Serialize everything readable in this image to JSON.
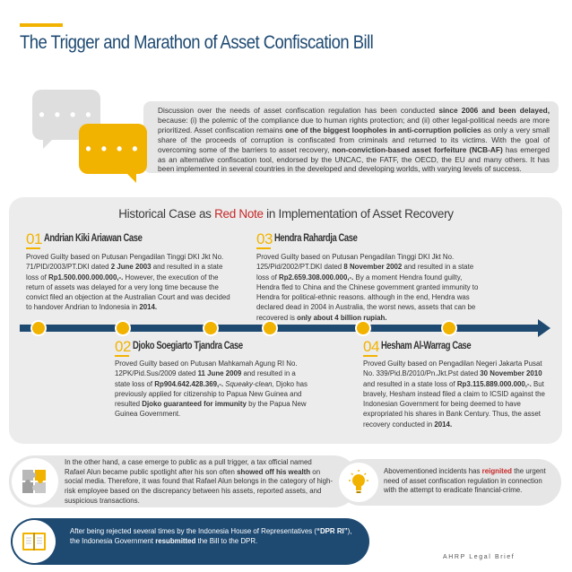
{
  "title": "The Trigger and Marathon of Asset Confiscation Bill",
  "intro": {
    "dots": "• • • •",
    "text": "Discussion over the needs of asset confiscation regulation has been conducted since 2006 and been delayed, because: (i) the polemic of the compliance due to human rights protection; and (ii) other legal-political needs are more prioritized. Asset confiscation remains one of the biggest loopholes in anti-corruption policies as only a very small share of the proceeds of corruption is confiscated from criminals and returned to its victims. With the goal of overcoming some of the barriers to asset recovery, non-conviction-based asset forfeiture (NCB-AF) has emerged as an alternative confiscation tool, endorsed by the UNCAC, the FATF, the OECD, the EU and many others. It has been implemented in several countries in the developed and developing worlds, with varying levels of success."
  },
  "cases_section": {
    "title_prefix": "Historical Case as ",
    "title_highlight": "Red Note",
    "title_suffix": " in Implementation of Asset Recovery",
    "cases": [
      {
        "number": "01",
        "name": "Andrian Kiki Ariawan Case",
        "body": "Proved Guilty based on Putusan Pengadilan Tinggi DKI Jkt No. 71/PID/2003/PT.DKI dated 2 June 2003 and resulted in a state loss of Rp1.500.000.000.000,-. However, the execution of the return of assets was delayed for a very long time because the convict filed an objection at the Australian Court and was decided to handover Andrian to Indonesia in 2014."
      },
      {
        "number": "02",
        "name": "Djoko Soegiarto Tjandra Case",
        "body": "Proved Guilty based on Putusan Mahkamah Agung RI No. 12PK/Pid.Sus/2009 dated 11 June 2009 and resulted in a state loss of Rp904.642.428.369,-. Squeaky-clean, Djoko has previously applied for citizenship to Papua New Guinea and resulted Djoko guaranteed for immunity by the Papua New Guinea Government."
      },
      {
        "number": "03",
        "name": "Hendra Rahardja Case",
        "body": "Proved Guilty based on Putusan Pengadilan Tinggi DKI Jkt No. 125/Pid/2002/PT.DKI dated 8 November 2002 and resulted in a state loss of Rp2.659.308.000.000,-. By a moment Hendra found guilty, Hendra fled to China and the Chinese government granted immunity to Hendra for political-ethnic reasons. although in the end, Hendra was declared dead in 2004 in Australia, the worst news, assets that can be recovered is only about 4 billion rupiah."
      },
      {
        "number": "04",
        "name": "Hesham Al-Warrag Case",
        "body": "Proved Guilty based on Pengadilan Negeri Jakarta Pusat No. 339/Pid.B/2010/Pn.Jkt.Pst dated 30 November 2010 and resulted in a state loss of Rp3.115.889.000.000,-. But bravely, Hesham instead filed a claim to ICSID against the Indonesian Government for being deemed to have expropriated his shares in Bank Century. Thus, the asset recovery conducted in 2014."
      }
    ]
  },
  "trigger_note": "In the other hand, a case emerge to public as a pull trigger, a tax official named Rafael Alun became public spotlight after his son often showed off his wealth on social media. Therefore, it was found that Rafael Alun belongs in the category of high-risk employee based on the discrepancy between his assets, reported assets, and suspicious transactions.",
  "reignite_note": "Abovementioned incidents has reignited the urgent need of asset confiscation regulation in connection with the attempt to eradicate financial-crime.",
  "final_note": "After being rejected several times by the Indonesia House of Representatives (“DPR RI”), the Indonesia Government resubmitted the Bill to the DPR.",
  "footer": "AHRP Legal Brief",
  "colors": {
    "navy": "#1e4a72",
    "gold": "#f2b300",
    "red": "#c62828",
    "panel": "#ececec"
  },
  "icons": [
    "speech-bubble-icon",
    "puzzle-icon",
    "lightbulb-icon",
    "open-book-icon"
  ]
}
